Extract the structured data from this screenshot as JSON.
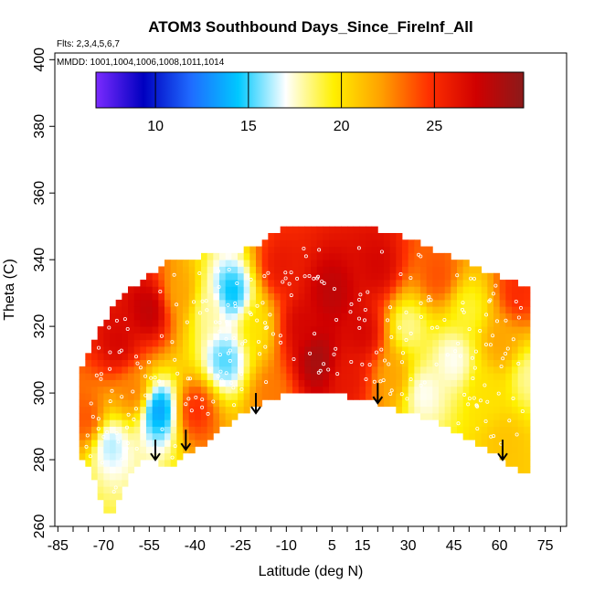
{
  "chart_data": {
    "type": "heatmap",
    "title": "ATOM3 Southbound Days_Since_FireInf_All",
    "flights_note": "Flts: 2,3,4,5,6,7",
    "dates_note": "MMDD: 1001,1004,1006,1008,1011,1014",
    "xlabel": "Latitude (deg N)",
    "ylabel": "Theta (C)",
    "xlim": [
      -86,
      82
    ],
    "ylim": [
      260,
      402
    ],
    "x_ticks": [
      -85,
      -70,
      -55,
      -40,
      -25,
      -10,
      5,
      15,
      30,
      45,
      60,
      75
    ],
    "x_minor_step": 5,
    "y_ticks": [
      260,
      280,
      300,
      320,
      340,
      360,
      380,
      400
    ],
    "colorbar": {
      "min": 6.8,
      "max": 29.8,
      "ticks": [
        10,
        15,
        20,
        25
      ],
      "stops": [
        "#7b2bff",
        "#0000c0",
        "#1f6bff",
        "#00c8ff",
        "#ffffff",
        "#fff000",
        "#ffa000",
        "#ff3000",
        "#d00000",
        "#8b1a1a"
      ]
    },
    "coverage": {
      "top_theta": [
        [
          -78,
          306
        ],
        [
          -72,
          317
        ],
        [
          -66,
          327
        ],
        [
          -58,
          332
        ],
        [
          -48,
          339
        ],
        [
          -38,
          340
        ],
        [
          -28,
          341
        ],
        [
          -20,
          343
        ],
        [
          -14,
          347
        ],
        [
          -8,
          350
        ],
        [
          0,
          350
        ],
        [
          10,
          349
        ],
        [
          20,
          348
        ],
        [
          28,
          346
        ],
        [
          34,
          344
        ],
        [
          44,
          340
        ],
        [
          55,
          336
        ],
        [
          63,
          333
        ],
        [
          70,
          330
        ]
      ],
      "bottom_theta": [
        [
          -78,
          282
        ],
        [
          -74,
          277
        ],
        [
          -70,
          267
        ],
        [
          -68,
          263
        ],
        [
          -66,
          267
        ],
        [
          -62,
          276
        ],
        [
          -56,
          282
        ],
        [
          -48,
          278
        ],
        [
          -42,
          283
        ],
        [
          -36,
          286
        ],
        [
          -30,
          291
        ],
        [
          -24,
          295
        ],
        [
          -16,
          299
        ],
        [
          -8,
          301
        ],
        [
          0,
          301
        ],
        [
          10,
          300
        ],
        [
          18,
          299
        ],
        [
          26,
          296
        ],
        [
          34,
          294
        ],
        [
          40,
          292
        ],
        [
          48,
          288
        ],
        [
          56,
          284
        ],
        [
          62,
          280
        ],
        [
          70,
          276
        ]
      ]
    },
    "value_field": [
      {
        "lat": -75,
        "theta": 292,
        "value": 24
      },
      {
        "lat": -68,
        "theta": 285,
        "value": 16
      },
      {
        "lat": -65,
        "theta": 315,
        "value": 27
      },
      {
        "lat": -60,
        "theta": 300,
        "value": 23
      },
      {
        "lat": -55,
        "theta": 325,
        "value": 28
      },
      {
        "lat": -52,
        "theta": 295,
        "value": 13
      },
      {
        "lat": -45,
        "theta": 330,
        "value": 22
      },
      {
        "lat": -40,
        "theta": 295,
        "value": 25
      },
      {
        "lat": -35,
        "theta": 325,
        "value": 18
      },
      {
        "lat": -30,
        "theta": 310,
        "value": 15
      },
      {
        "lat": -28,
        "theta": 330,
        "value": 14
      },
      {
        "lat": -20,
        "theta": 320,
        "value": 20
      },
      {
        "lat": -15,
        "theta": 300,
        "value": 23
      },
      {
        "lat": -12,
        "theta": 338,
        "value": 26
      },
      {
        "lat": -5,
        "theta": 320,
        "value": 27
      },
      {
        "lat": 0,
        "theta": 310,
        "value": 29
      },
      {
        "lat": 5,
        "theta": 330,
        "value": 28
      },
      {
        "lat": 10,
        "theta": 305,
        "value": 26
      },
      {
        "lat": 15,
        "theta": 318,
        "value": 27
      },
      {
        "lat": 20,
        "theta": 338,
        "value": 27
      },
      {
        "lat": 25,
        "theta": 305,
        "value": 22
      },
      {
        "lat": 30,
        "theta": 320,
        "value": 18
      },
      {
        "lat": 35,
        "theta": 300,
        "value": 17
      },
      {
        "lat": 40,
        "theta": 335,
        "value": 24
      },
      {
        "lat": 45,
        "theta": 310,
        "value": 17
      },
      {
        "lat": 50,
        "theta": 325,
        "value": 19
      },
      {
        "lat": 55,
        "theta": 300,
        "value": 20
      },
      {
        "lat": 60,
        "theta": 315,
        "value": 22
      },
      {
        "lat": 62,
        "theta": 285,
        "value": 21
      },
      {
        "lat": 66,
        "theta": 330,
        "value": 25
      },
      {
        "lat": 70,
        "theta": 305,
        "value": 18
      }
    ],
    "arrows": [
      {
        "lat": -53,
        "theta": 286
      },
      {
        "lat": -43,
        "theta": 289
      },
      {
        "lat": -20,
        "theta": 300
      },
      {
        "lat": 20,
        "theta": 303
      },
      {
        "lat": 61,
        "theta": 286
      }
    ]
  }
}
